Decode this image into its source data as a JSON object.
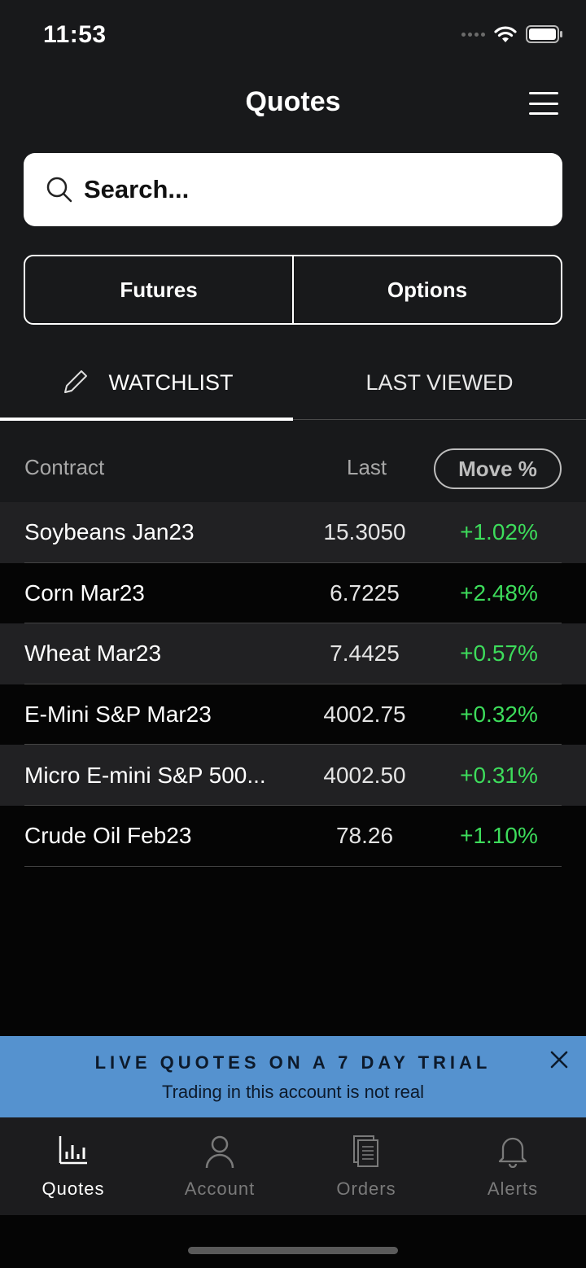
{
  "status": {
    "time": "11:53"
  },
  "header": {
    "title": "Quotes"
  },
  "search": {
    "placeholder": "Search..."
  },
  "segments": [
    {
      "label": "Futures"
    },
    {
      "label": "Options"
    }
  ],
  "tabs": [
    {
      "label": "WATCHLIST",
      "active": true
    },
    {
      "label": "LAST VIEWED",
      "active": false
    }
  ],
  "table": {
    "headers": {
      "contract": "Contract",
      "last": "Last",
      "move": "Move %"
    },
    "rows": [
      {
        "contract": "Soybeans Jan23",
        "last": "15.3050",
        "move": "+1.02%"
      },
      {
        "contract": "Corn Mar23",
        "last": "6.7225",
        "move": "+2.48%"
      },
      {
        "contract": "Wheat Mar23",
        "last": "7.4425",
        "move": "+0.57%"
      },
      {
        "contract": "E-Mini S&P Mar23",
        "last": "4002.75",
        "move": "+0.32%"
      },
      {
        "contract": "Micro E-mini S&P 500...",
        "last": "4002.50",
        "move": "+0.31%"
      },
      {
        "contract": "Crude Oil Feb23",
        "last": "78.26",
        "move": "+1.10%"
      }
    ]
  },
  "banner": {
    "title": "LIVE QUOTES ON A 7 DAY TRIAL",
    "subtitle": "Trading in this account is not real"
  },
  "tabbar": [
    {
      "label": "Quotes",
      "icon": "bar-chart-icon",
      "active": true
    },
    {
      "label": "Account",
      "icon": "person-icon",
      "active": false
    },
    {
      "label": "Orders",
      "icon": "document-icon",
      "active": false
    },
    {
      "label": "Alerts",
      "icon": "bell-icon",
      "active": false
    }
  ],
  "colors": {
    "positive": "#3ddc5b",
    "banner": "#5592cf",
    "background": "#18191b"
  }
}
